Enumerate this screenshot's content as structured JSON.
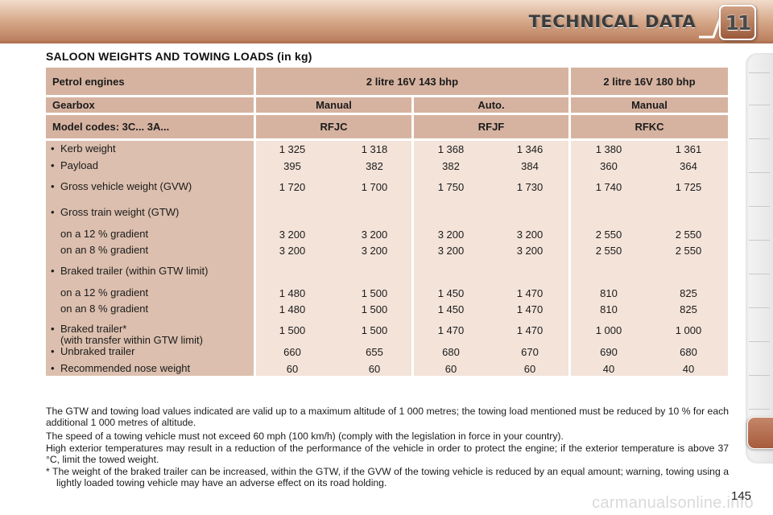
{
  "header": {
    "title": "TECHNICAL DATA",
    "chapter": "11"
  },
  "section_title": "SALOON WEIGHTS AND TOWING LOADS (in kg)",
  "table": {
    "engine_row": {
      "label": "Petrol engines",
      "engine_a": "2 litre 16V 143 bhp",
      "engine_b": "2 litre 16V 180 bhp"
    },
    "gearbox_row": {
      "label": "Gearbox",
      "col_1": "Manual",
      "col_2": "Auto.",
      "col_3": "Manual"
    },
    "model_row": {
      "label": "Model codes: 3C... 3A...",
      "col_1": "RFJC",
      "col_2": "RFJF",
      "col_3": "RFKC"
    },
    "rows": [
      {
        "bullet": "•",
        "label": "Kerb weight",
        "values": [
          "1 325",
          "1 318",
          "1 368",
          "1 346",
          "1 380",
          "1 361"
        ]
      },
      {
        "bullet": "•",
        "label": "Payload",
        "values": [
          "395",
          "382",
          "382",
          "384",
          "360",
          "364"
        ]
      },
      {
        "bullet": "•",
        "label": "Gross vehicle weight (GVW)",
        "values": [
          "1 720",
          "1 700",
          "1 750",
          "1 730",
          "1 740",
          "1 725"
        ]
      },
      {
        "bullet": "•",
        "label": "Gross train weight (GTW)",
        "values": [
          "",
          "",
          "",
          "",
          "",
          ""
        ]
      },
      {
        "bullet": "",
        "label": "on a 12 % gradient",
        "values": [
          "3 200",
          "3 200",
          "3 200",
          "3 200",
          "2 550",
          "2 550"
        ]
      },
      {
        "bullet": "",
        "label": "on an 8 % gradient",
        "values": [
          "3 200",
          "3 200",
          "3 200",
          "3 200",
          "2 550",
          "2 550"
        ]
      },
      {
        "bullet": "•",
        "label": "Braked trailer (within GTW limit)",
        "values": [
          "",
          "",
          "",
          "",
          "",
          ""
        ]
      },
      {
        "bullet": "",
        "label": "on a 12 % gradient",
        "values": [
          "1 480",
          "1 500",
          "1 450",
          "1 470",
          "810",
          "825"
        ]
      },
      {
        "bullet": "",
        "label": "on an 8 % gradient",
        "values": [
          "1 480",
          "1 500",
          "1 450",
          "1 470",
          "810",
          "825"
        ]
      },
      {
        "bullet": "•",
        "label": "Braked trailer*",
        "label_line2": "(with transfer within GTW limit)",
        "values": [
          "1 500",
          "1 500",
          "1 470",
          "1 470",
          "1 000",
          "1 000"
        ]
      },
      {
        "bullet": "•",
        "label": "Unbraked trailer",
        "values": [
          "660",
          "655",
          "680",
          "670",
          "690",
          "680"
        ]
      },
      {
        "bullet": "•",
        "label": "Recommended nose weight",
        "values": [
          "60",
          "60",
          "60",
          "60",
          "40",
          "40"
        ]
      }
    ]
  },
  "notes": [
    "The GTW and towing load values indicated are valid up to a maximum altitude of 1 000 metres; the towing load mentioned must be reduced by 10 % for each additional 1 000 metres of altitude.",
    "The speed of a towing vehicle must not exceed 60 mph (100 km/h) (comply with the legislation in force in your country).",
    "High exterior temperatures may result in a reduction of the performance of the vehicle in order to protect the engine; if the exterior temperature is above 37 °C, limit the towed weight."
  ],
  "footnote": "* The weight of the braked trailer can be increased, within the GTW, if the GVW of the towing vehicle is reduced by an equal amount; warning, towing using a lightly loaded towing vehicle may have an adverse effect on its road holding.",
  "page_number": "145",
  "watermark": "carmanualsonline.info",
  "colors": {
    "header_cell": "#d6b3a0",
    "label_column": "#dcbfae",
    "value_cells": "#f3e3d9",
    "accent_tab": "#b06a4a"
  }
}
